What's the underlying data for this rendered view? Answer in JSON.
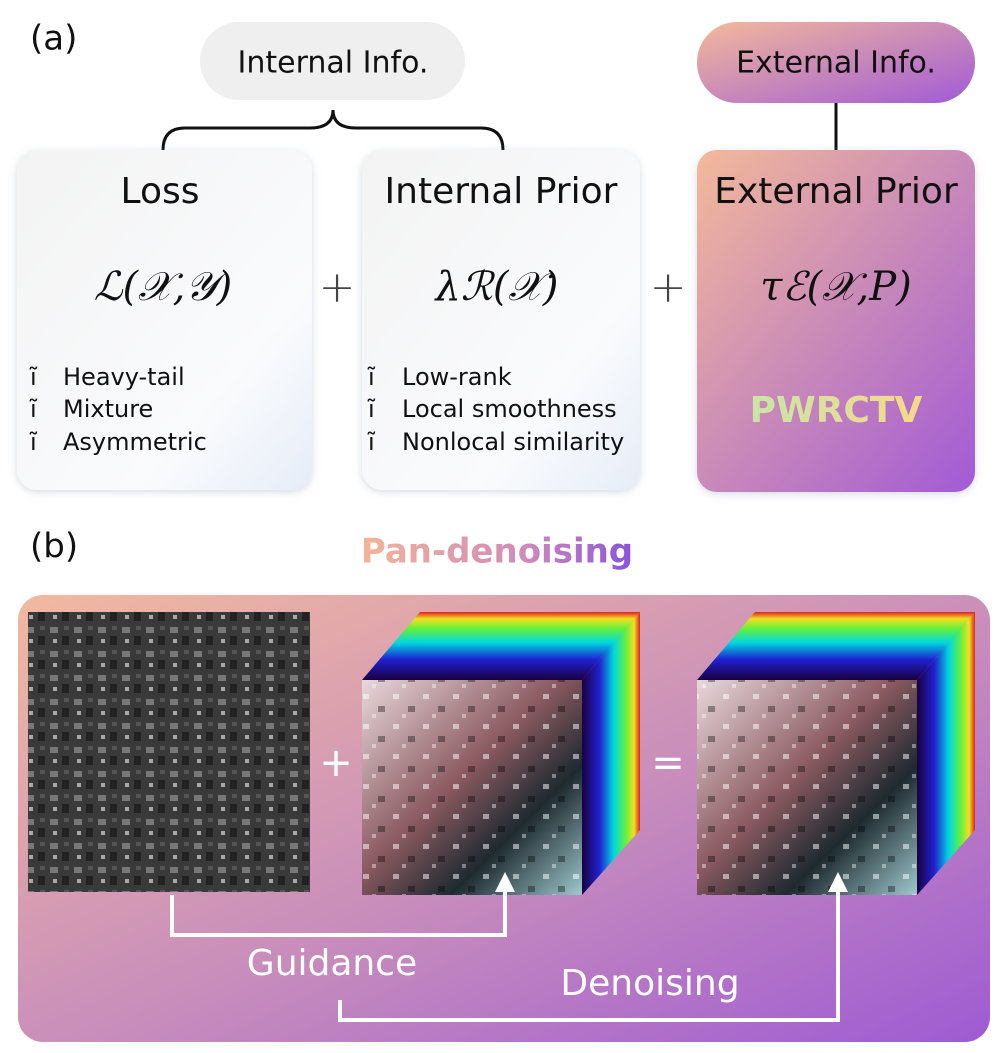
{
  "panel_a": {
    "label": "(a)",
    "internal_info": "Internal Info.",
    "external_info": "External Info.",
    "bullet_glyph": "ĩ",
    "operators": [
      "+",
      "+"
    ],
    "boxes": [
      {
        "title": "Loss",
        "formula": "ℒ(𝒳,𝒴)",
        "items": [
          "Heavy-tail",
          "Mixture",
          "Asymmetric"
        ]
      },
      {
        "title": "Internal Prior",
        "formula": "λℛ(𝒳)",
        "items": [
          "Low-rank",
          "Local smoothness",
          "Nonlocal similarity"
        ]
      },
      {
        "title": "External Prior",
        "formula": "τℰ(𝒳,P)",
        "method": "PWRCTV"
      }
    ]
  },
  "panel_b": {
    "label": "(b)",
    "title": "Pan-denoising",
    "operators": [
      "+",
      "="
    ],
    "guidance": "Guidance",
    "denoising": "Denoising"
  }
}
